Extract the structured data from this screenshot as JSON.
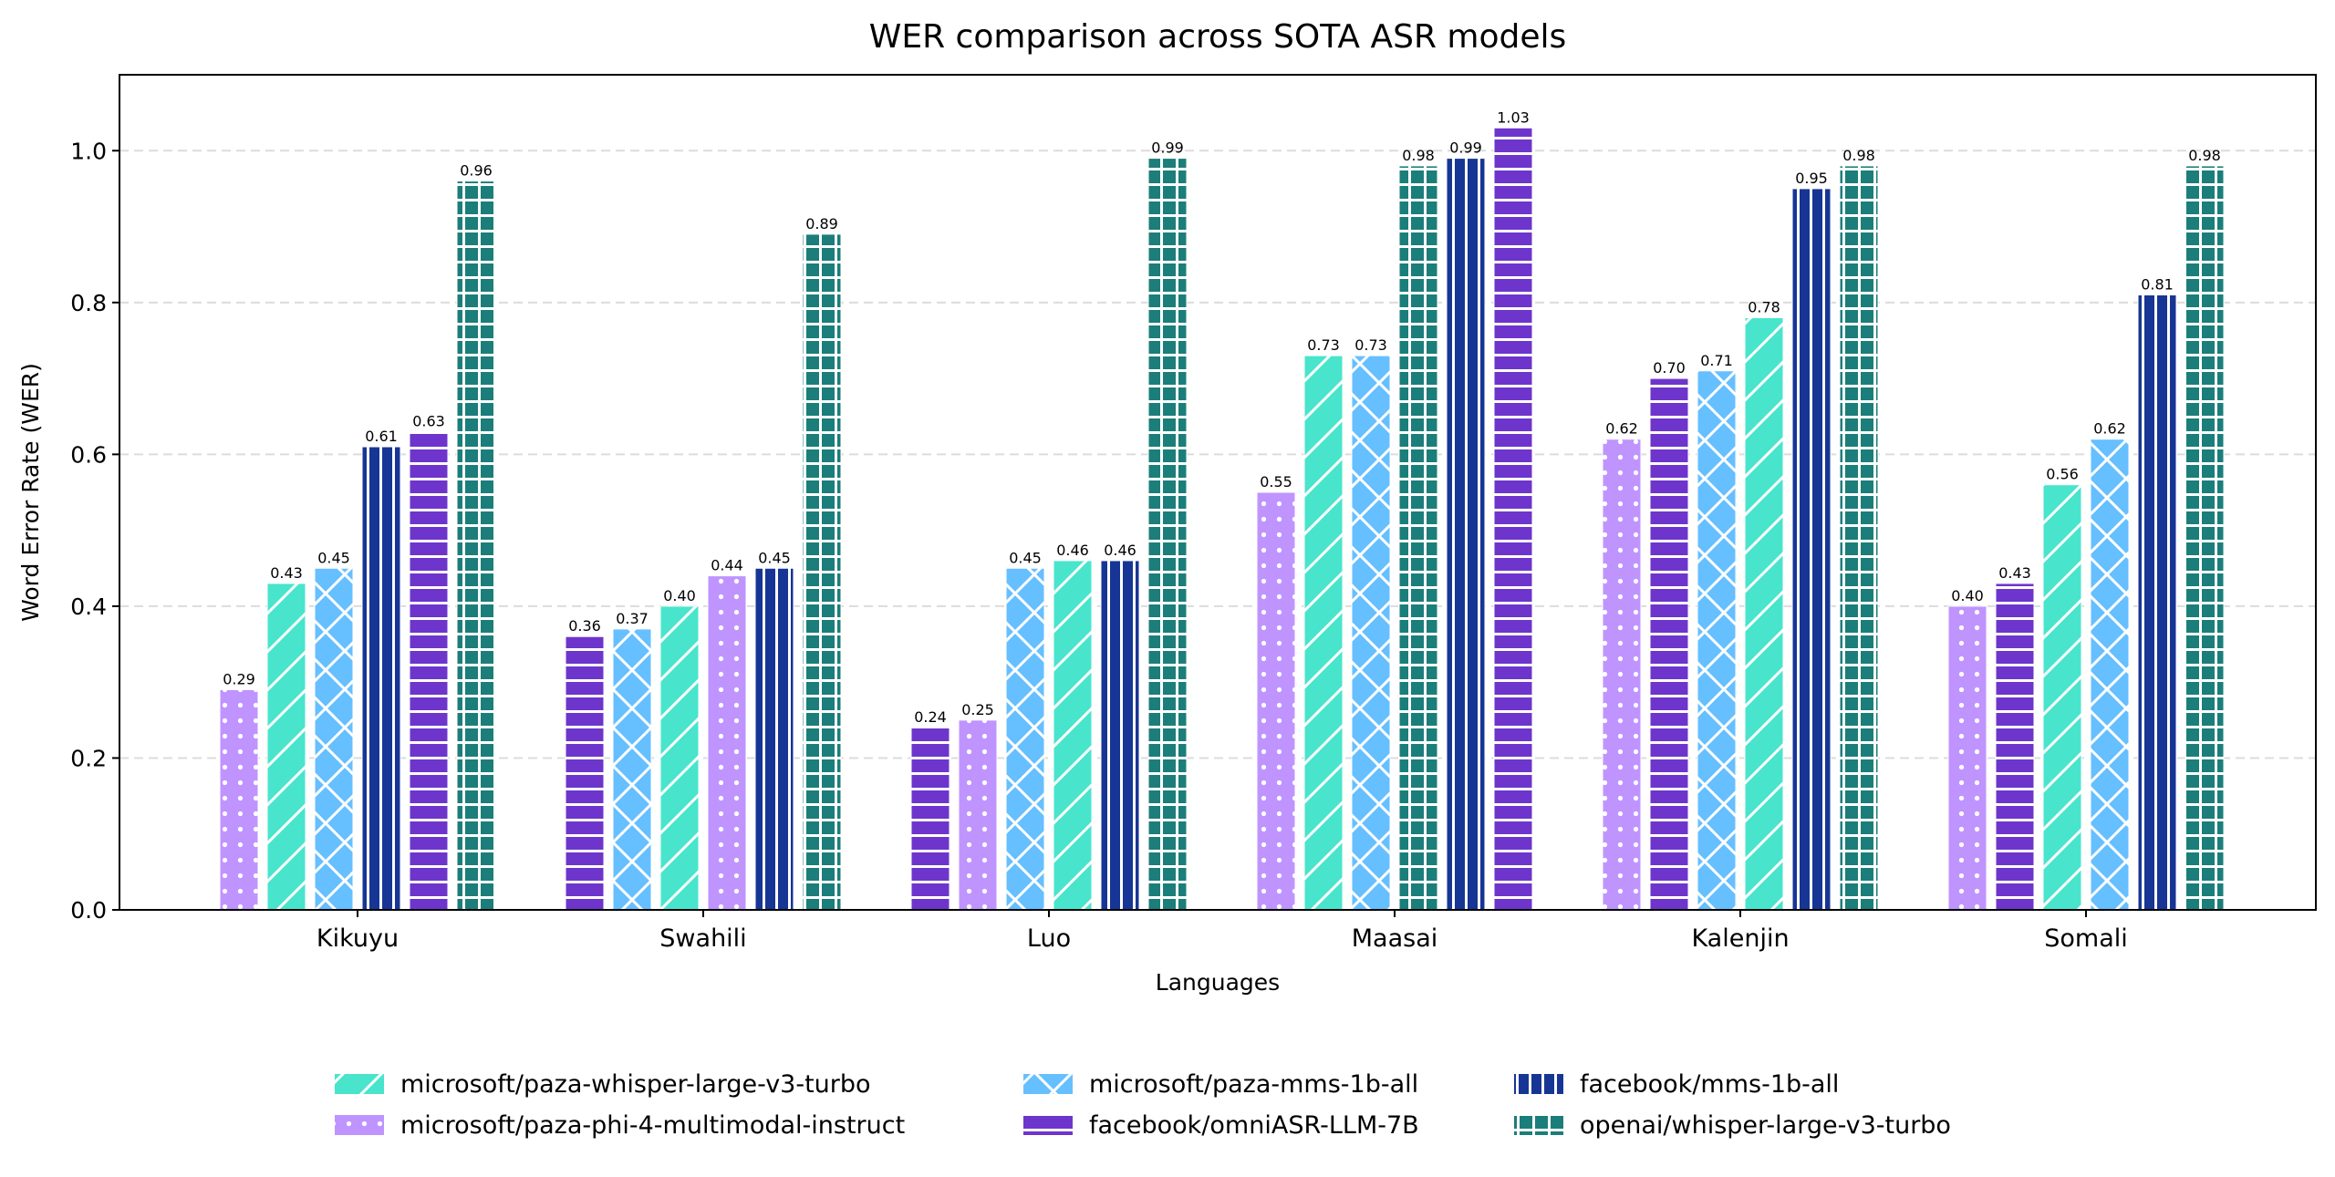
{
  "chart_data": {
    "type": "bar",
    "title": "WER comparison across SOTA ASR models",
    "xlabel": "Languages",
    "ylabel": "Word Error Rate (WER)",
    "ylim": [
      0,
      1.1
    ],
    "yticks": [
      "0.0",
      "0.2",
      "0.4",
      "0.6",
      "0.8",
      "1.0"
    ],
    "grid": "horizontal dashed",
    "legend_position": "bottom-center",
    "bars_sorted_ascending_within_group": true,
    "categories": [
      "Kikuyu",
      "Swahili",
      "Luo",
      "Maasai",
      "Kalenjin",
      "Somali"
    ],
    "series": [
      {
        "name": "microsoft/paza-whisper-large-v3-turbo",
        "color": "#48E5CC",
        "hatch": "diagonal",
        "values": [
          0.43,
          0.4,
          0.46,
          0.73,
          0.78,
          0.56
        ]
      },
      {
        "name": "microsoft/paza-phi-4-multimodal-instruct",
        "color": "#BF94FF",
        "hatch": "dots",
        "values": [
          0.29,
          0.44,
          0.25,
          0.55,
          0.62,
          0.4
        ]
      },
      {
        "name": "microsoft/paza-mms-1b-all",
        "color": "#66BFFF",
        "hatch": "crosshatch",
        "values": [
          0.45,
          0.37,
          0.45,
          0.73,
          0.71,
          0.62
        ]
      },
      {
        "name": "facebook/omniASR-LLM-7B",
        "color": "#6E35CC",
        "hatch": "horizontal",
        "values": [
          0.63,
          0.36,
          0.24,
          1.03,
          0.7,
          0.43
        ]
      },
      {
        "name": "facebook/mms-1b-all",
        "color": "#173594",
        "hatch": "vertical",
        "values": [
          0.61,
          0.45,
          0.46,
          0.99,
          0.95,
          0.81
        ]
      },
      {
        "name": "openai/whisper-large-v3-turbo",
        "color": "#1B7E7A",
        "hatch": "grid",
        "values": [
          0.96,
          0.89,
          0.99,
          0.98,
          0.98,
          0.98
        ]
      }
    ]
  }
}
